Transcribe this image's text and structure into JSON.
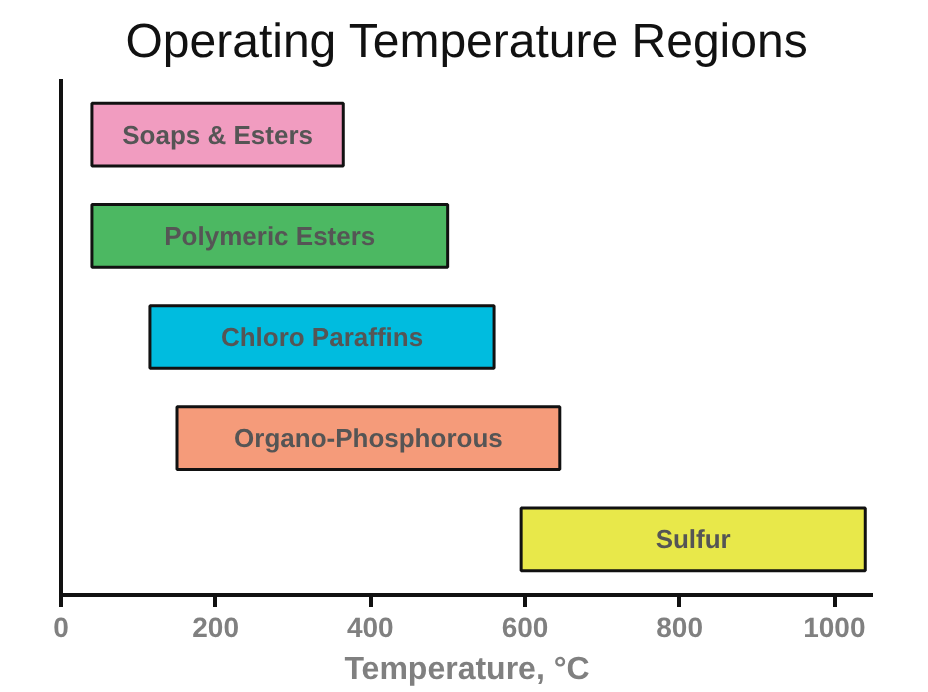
{
  "chart_data": {
    "type": "bar",
    "orientation": "horizontal",
    "title": "Operating Temperature Regions",
    "xlabel": "Temperature, °C",
    "categories": [
      "Soaps & Esters",
      "Polymeric Esters",
      "Chloro Paraffins",
      "Organo-Phosphorous",
      "Sulfur"
    ],
    "base": [
      40,
      40,
      115,
      150,
      595
    ],
    "values": [
      325,
      460,
      445,
      495,
      445
    ],
    "colors": [
      "#f19cc0",
      "#4cb862",
      "#00bcdf",
      "#f59b7a",
      "#e8e84a"
    ],
    "xlim": [
      0,
      1050
    ],
    "xticks": [
      0,
      200,
      400,
      600,
      800,
      1000
    ],
    "grid": false,
    "tick_labels": "x"
  }
}
